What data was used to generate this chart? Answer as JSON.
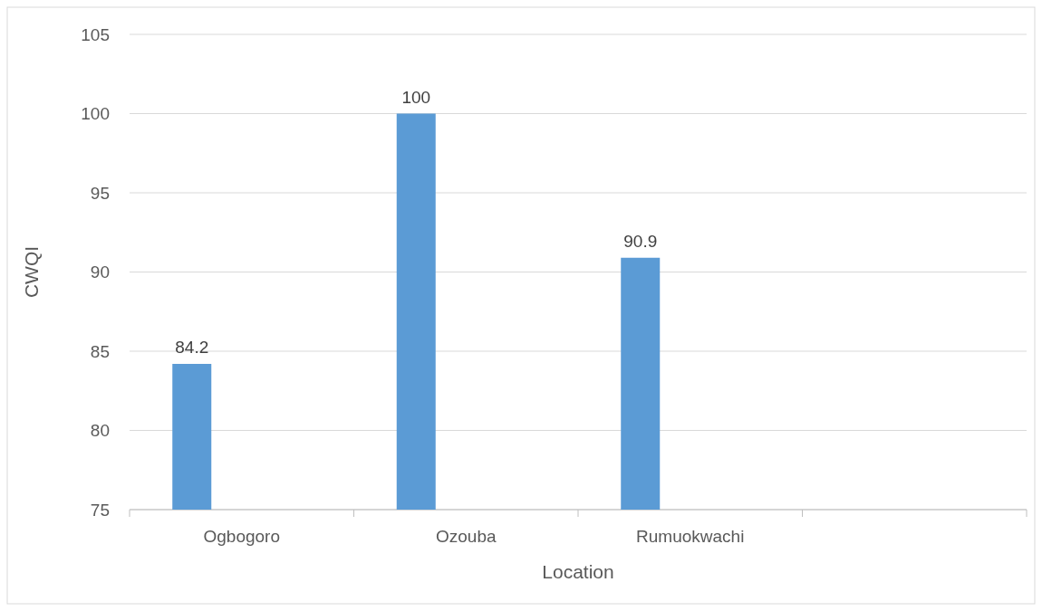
{
  "chart_data": {
    "type": "bar",
    "xlabel": "Location",
    "ylabel": "CWQI",
    "categories": [
      "Ogbogoro",
      "Ozouba",
      "Rumuokwachi",
      null
    ],
    "series": [
      {
        "color": "#5b9bd5",
        "values": [
          84.2,
          100,
          90.9,
          null
        ]
      },
      {
        "values": [
          null,
          null,
          null,
          null
        ]
      }
    ],
    "ylim": [
      75,
      105
    ],
    "yticks": [
      75,
      80,
      85,
      90,
      95,
      100,
      105
    ],
    "grid": "y",
    "data_labels": true
  }
}
